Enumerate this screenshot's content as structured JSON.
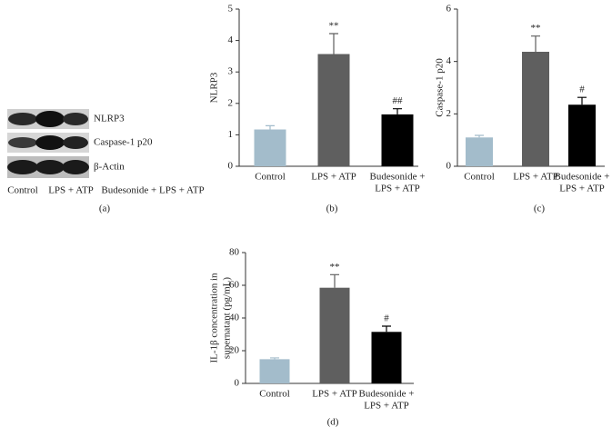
{
  "blot": {
    "rows": [
      "NLRP3",
      "Caspase-1 p20",
      "β-Actin"
    ],
    "lanes": [
      "Control",
      "LPS + ATP",
      "Budesonide + LPS + ATP"
    ],
    "caption": "(a)"
  },
  "chart_data": [
    {
      "type": "bar",
      "caption": "(b)",
      "ylabel": [
        "NLRP3"
      ],
      "categories": [
        [
          "Control"
        ],
        [
          "LPS + ATP"
        ],
        [
          "Budesonide +",
          "LPS + ATP"
        ]
      ],
      "values": [
        1.17,
        3.57,
        1.65
      ],
      "errors": [
        0.12,
        0.65,
        0.18
      ],
      "annotations": [
        null,
        "**",
        "##"
      ],
      "colors": [
        "#a3bccb",
        "#5f5f5f",
        "#000000"
      ],
      "ylim": [
        0,
        5
      ],
      "yticks": [
        0,
        1,
        2,
        3,
        4,
        5
      ]
    },
    {
      "type": "bar",
      "caption": "(c)",
      "ylabel": [
        "Caspase-1 p20"
      ],
      "categories": [
        [
          "Control"
        ],
        [
          "LPS + ATP"
        ],
        [
          "Budesonide +",
          "LPS + ATP"
        ]
      ],
      "values": [
        1.1,
        4.37,
        2.35
      ],
      "errors": [
        0.08,
        0.6,
        0.28
      ],
      "annotations": [
        null,
        "**",
        "#"
      ],
      "colors": [
        "#a3bccb",
        "#5f5f5f",
        "#000000"
      ],
      "ylim": [
        0,
        6
      ],
      "yticks": [
        0,
        2,
        4,
        6
      ]
    },
    {
      "type": "bar",
      "caption": "(d)",
      "ylabel": [
        "IL-1β concentration in",
        "supernatant (pg/mL)"
      ],
      "categories": [
        [
          "Control"
        ],
        [
          "LPS + ATP"
        ],
        [
          "Budesonide +",
          "LPS + ATP"
        ]
      ],
      "values": [
        14.8,
        58.5,
        31.5
      ],
      "errors": [
        0.8,
        8,
        3.5
      ],
      "annotations": [
        null,
        "**",
        "#"
      ],
      "colors": [
        "#a3bccb",
        "#5f5f5f",
        "#000000"
      ],
      "ylim": [
        0,
        80
      ],
      "yticks": [
        0,
        20,
        40,
        60,
        80
      ]
    }
  ]
}
